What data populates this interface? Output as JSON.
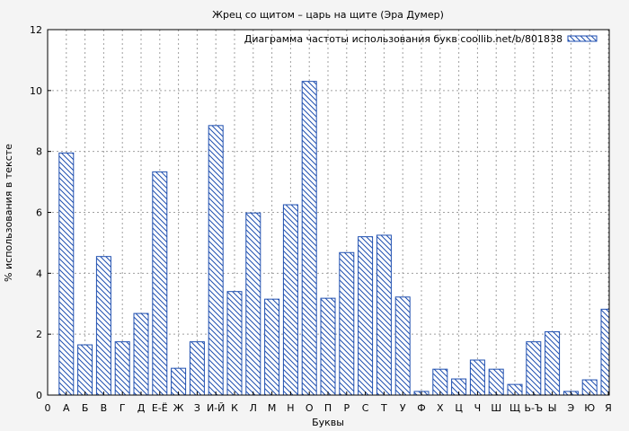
{
  "chart_data": {
    "type": "bar",
    "title": "Жрец со щитом – царь на щите (Эра Думер)",
    "xlabel": "Буквы",
    "ylabel": "% использования в тексте",
    "ylim": [
      0,
      12
    ],
    "yticks": [
      0,
      2,
      4,
      6,
      8,
      10,
      12
    ],
    "grid": true,
    "legend_position": "top-right",
    "series": [
      {
        "name": "Диаграмма частоты использования букв coollib.net/b/801838",
        "color": "#1f4fb0",
        "pattern": "diagonal-hatch"
      }
    ],
    "x_tick_labels": [
      "0",
      "А",
      "Б",
      "В",
      "Г",
      "Д",
      "Е-Ё",
      "Ж",
      "З",
      "И-Й",
      "К",
      "Л",
      "М",
      "Н",
      "О",
      "П",
      "Р",
      "С",
      "Т",
      "У",
      "Ф",
      "Х",
      "Ц",
      "Ч",
      "Ш",
      "Щ",
      "Ь-Ъ",
      "Ы",
      "Э",
      "Ю",
      "Я"
    ],
    "categories": [
      "А",
      "Б",
      "В",
      "Г",
      "Д",
      "Е-Ё",
      "Ж",
      "З",
      "И-Й",
      "К",
      "Л",
      "М",
      "Н",
      "О",
      "П",
      "Р",
      "С",
      "Т",
      "У",
      "Ф",
      "Х",
      "Ц",
      "Ч",
      "Ш",
      "Щ",
      "Ь-Ъ",
      "Ы",
      "Э",
      "Ю",
      "Я"
    ],
    "values": [
      7.95,
      1.65,
      4.55,
      1.75,
      2.68,
      7.33,
      0.88,
      1.75,
      8.85,
      3.4,
      5.98,
      3.15,
      6.25,
      10.3,
      3.18,
      4.68,
      5.2,
      5.25,
      3.22,
      0.12,
      0.85,
      0.53,
      1.15,
      0.85,
      0.35,
      1.75,
      2.08,
      0.12,
      0.5,
      2.82
    ]
  }
}
